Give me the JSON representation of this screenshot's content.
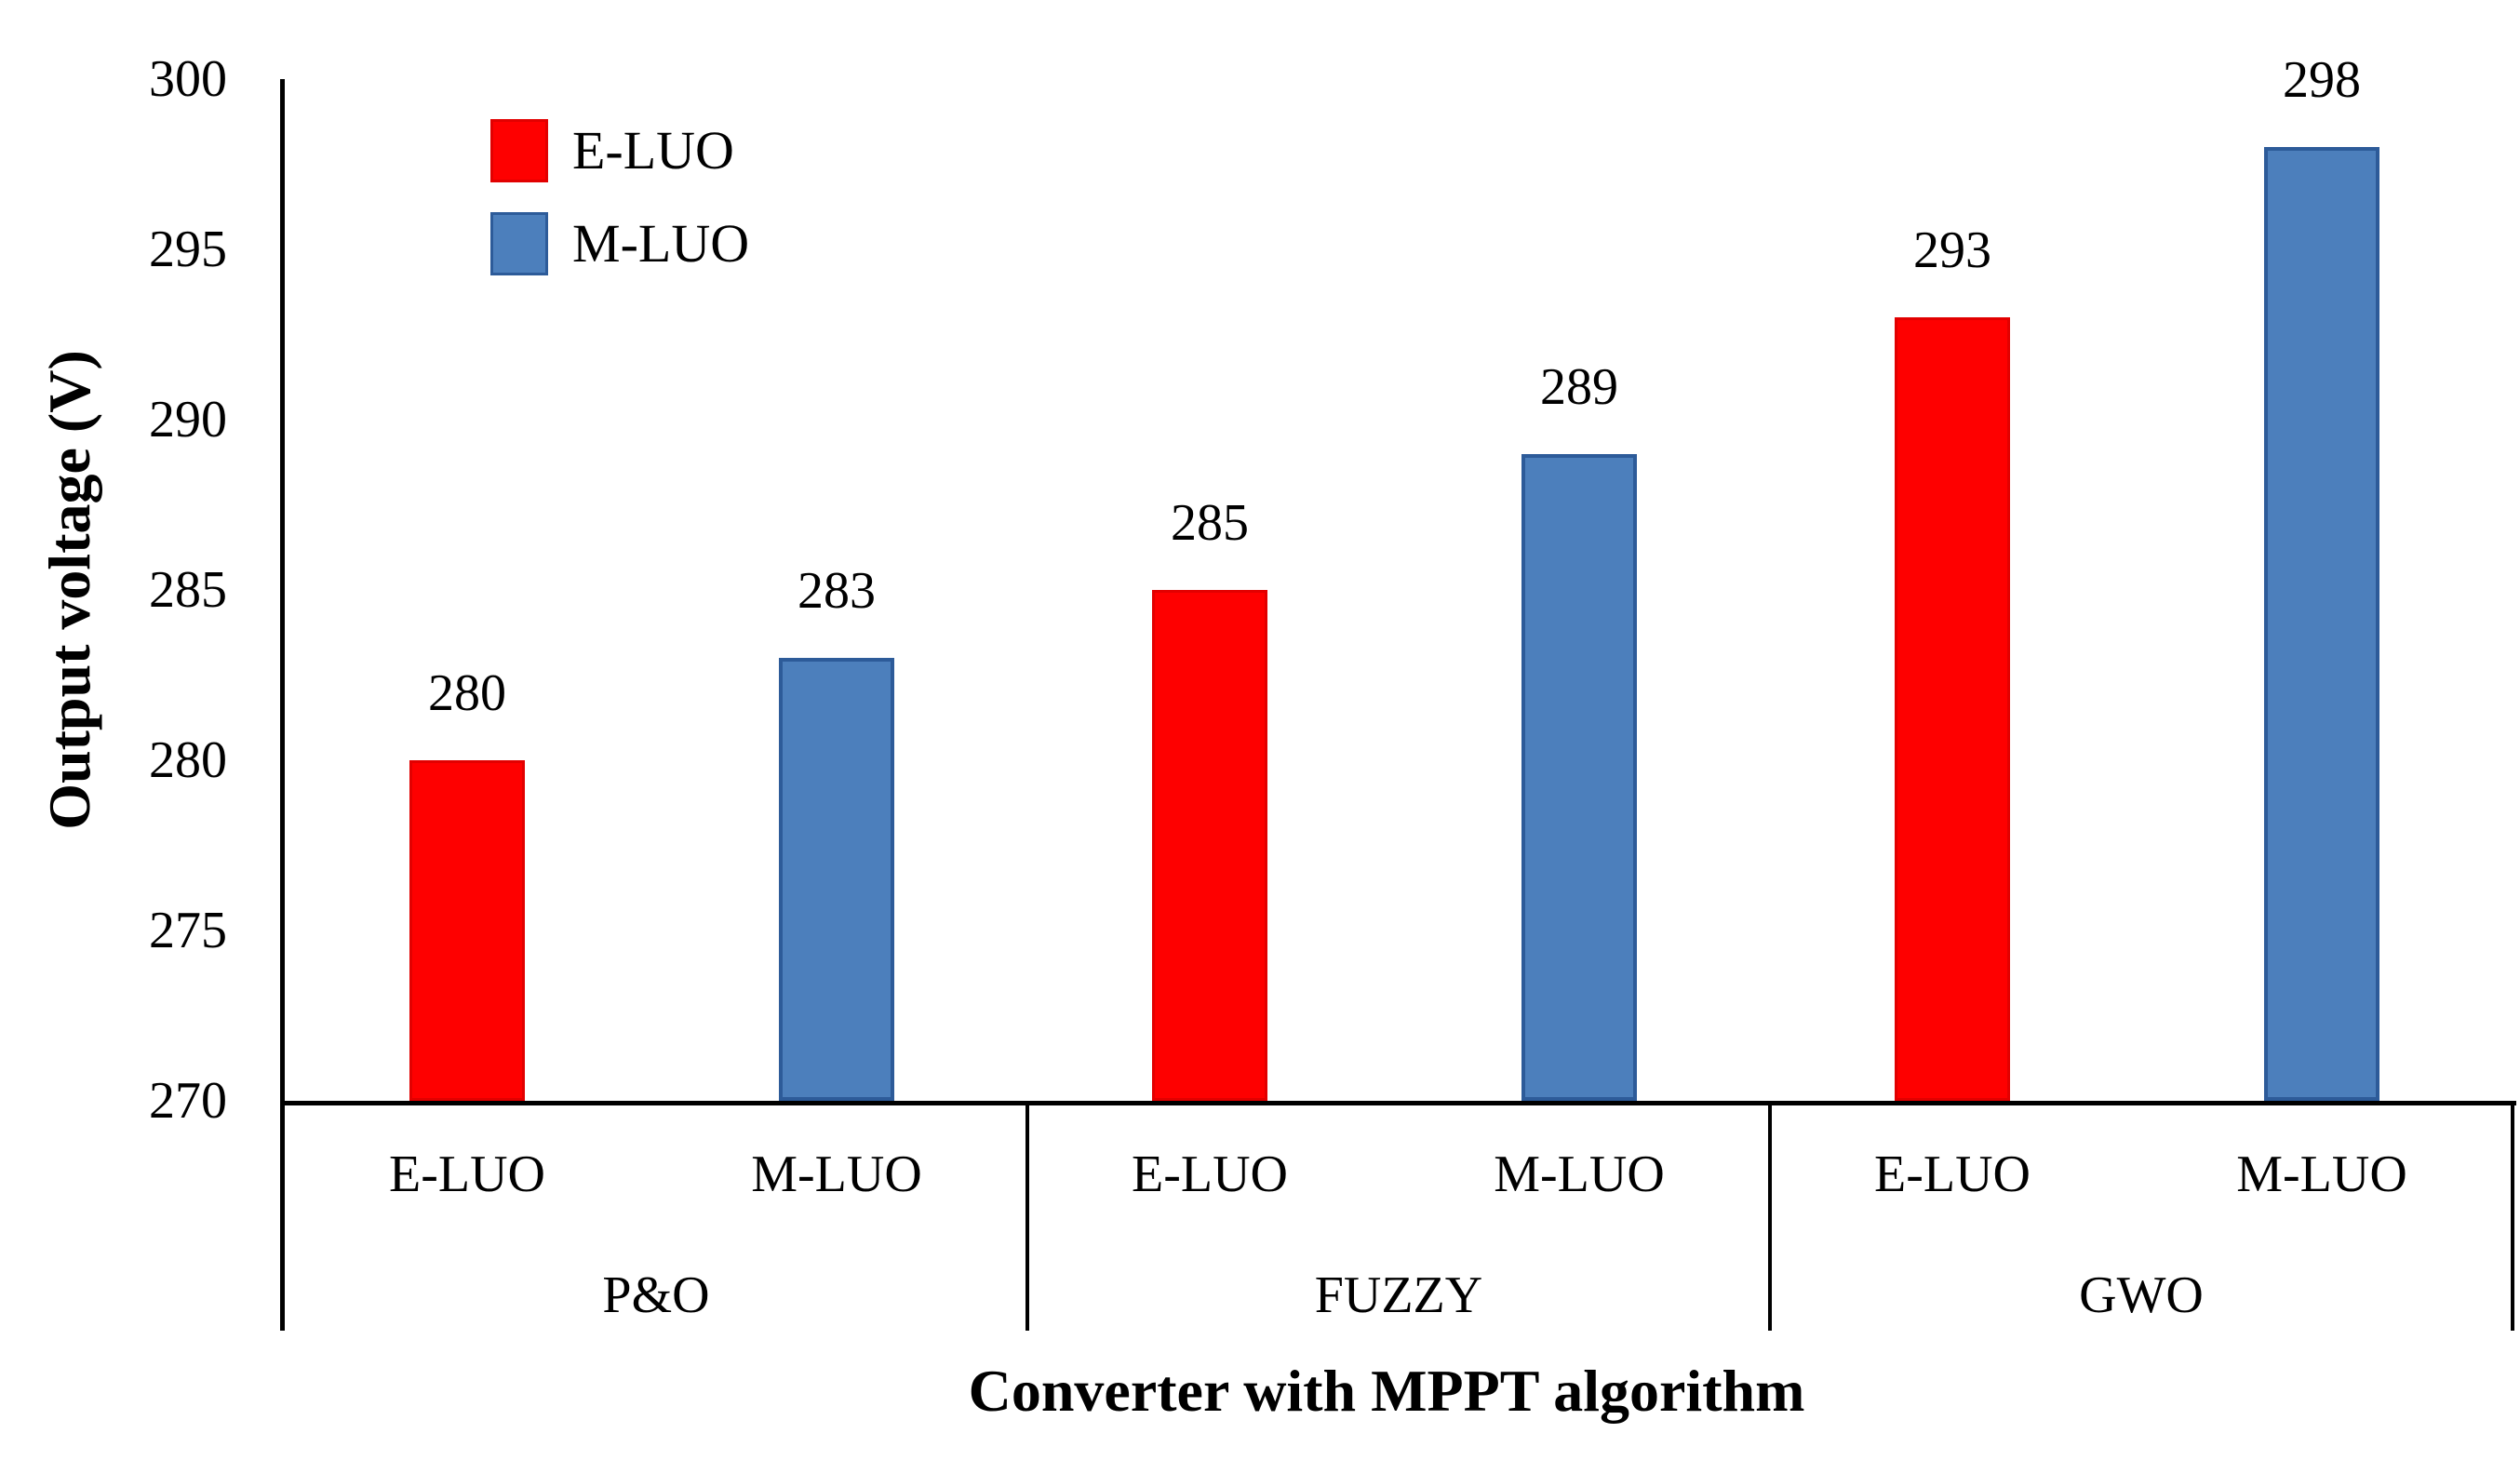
{
  "chart_data": {
    "type": "bar",
    "title": "",
    "xlabel": "Converter with MPPT algorithm",
    "ylabel": "Output voltage (V)",
    "ylim": [
      270,
      300
    ],
    "yticks": [
      270,
      275,
      280,
      285,
      290,
      295,
      300
    ],
    "grid": false,
    "categories": [
      "P&O",
      "FUZZY",
      "GWO"
    ],
    "series": [
      {
        "name": "E-LUO",
        "color": "#fe0000",
        "border_color": "#e20000",
        "values": [
          280,
          285,
          293
        ]
      },
      {
        "name": "M-LUO",
        "color": "#4c7fbc",
        "border_color": "#2d5b99",
        "values": [
          283,
          289,
          298
        ]
      }
    ],
    "bar_sublabels": [
      "E-LUO",
      "M-LUO"
    ],
    "legend": {
      "position": "top-left-inside",
      "entries": [
        "E-LUO",
        "M-LUO"
      ]
    },
    "axis_color": "#000000"
  }
}
